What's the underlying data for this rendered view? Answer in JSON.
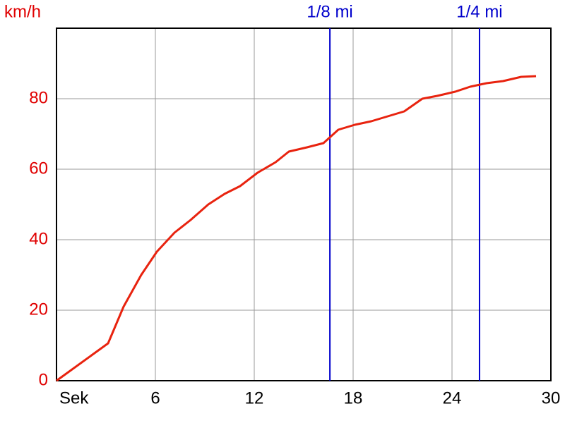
{
  "chart_data": {
    "type": "line",
    "y_label": "km/h",
    "x": [
      0,
      3.13,
      4.07,
      5.14,
      6.09,
      7.16,
      8.14,
      9.21,
      10.2,
      11.14,
      12.2,
      13.3,
      14.1,
      15.2,
      16.2,
      17.1,
      18.1,
      19.1,
      20.1,
      21.1,
      22.2,
      23.1,
      24.2,
      25.1,
      26.1,
      27.1,
      28.2,
      29.1
    ],
    "series": [
      {
        "color": "#e8230f",
        "values": [
          0,
          10.6,
          21,
          30,
          36.6,
          42,
          45.6,
          50,
          53,
          55.2,
          59,
          62,
          65,
          66.2,
          67.4,
          71.2,
          72.6,
          73.6,
          75,
          76.4,
          80,
          80.8,
          82,
          83.4,
          84.4,
          85,
          86.2,
          86.4
        ]
      }
    ],
    "xlim": [
      0,
      30
    ],
    "xticks": [
      {
        "value": 0,
        "label": "Sek"
      },
      6,
      12,
      18,
      24,
      30
    ],
    "ylim": [
      0,
      100
    ],
    "yticks": [
      0,
      20,
      40,
      60,
      80
    ],
    "grid": true,
    "tick_color": "#e00000",
    "markers": [
      {
        "label": "1/8 mi",
        "value": 16.59,
        "color": "#0000cc"
      },
      {
        "label": "1/4 mi",
        "value": 25.67,
        "color": "#0000cc"
      }
    ]
  }
}
